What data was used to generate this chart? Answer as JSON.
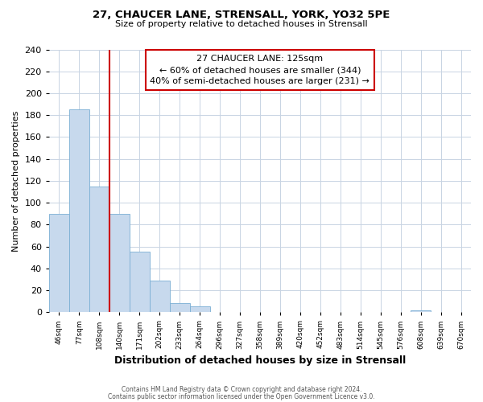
{
  "title": "27, CHAUCER LANE, STRENSALL, YORK, YO32 5PE",
  "subtitle": "Size of property relative to detached houses in Strensall",
  "xlabel": "Distribution of detached houses by size in Strensall",
  "ylabel": "Number of detached properties",
  "bin_labels": [
    "46sqm",
    "77sqm",
    "108sqm",
    "140sqm",
    "171sqm",
    "202sqm",
    "233sqm",
    "264sqm",
    "296sqm",
    "327sqm",
    "358sqm",
    "389sqm",
    "420sqm",
    "452sqm",
    "483sqm",
    "514sqm",
    "545sqm",
    "576sqm",
    "608sqm",
    "639sqm",
    "670sqm"
  ],
  "bin_values": [
    90,
    185,
    115,
    90,
    55,
    29,
    8,
    5,
    0,
    0,
    0,
    0,
    0,
    0,
    0,
    0,
    0,
    0,
    2,
    0,
    0
  ],
  "bar_color": "#c7d9ed",
  "bar_edge_color": "#7bafd4",
  "vline_color": "#cc0000",
  "ylim": [
    0,
    240
  ],
  "yticks": [
    0,
    20,
    40,
    60,
    80,
    100,
    120,
    140,
    160,
    180,
    200,
    220,
    240
  ],
  "annotation_title": "27 CHAUCER LANE: 125sqm",
  "annotation_line1": "← 60% of detached houses are smaller (344)",
  "annotation_line2": "40% of semi-detached houses are larger (231) →",
  "annotation_box_color": "#ffffff",
  "annotation_box_edge": "#cc0000",
  "footer1": "Contains HM Land Registry data © Crown copyright and database right 2024.",
  "footer2": "Contains public sector information licensed under the Open Government Licence v3.0.",
  "background_color": "#ffffff",
  "grid_color": "#c8d4e3"
}
